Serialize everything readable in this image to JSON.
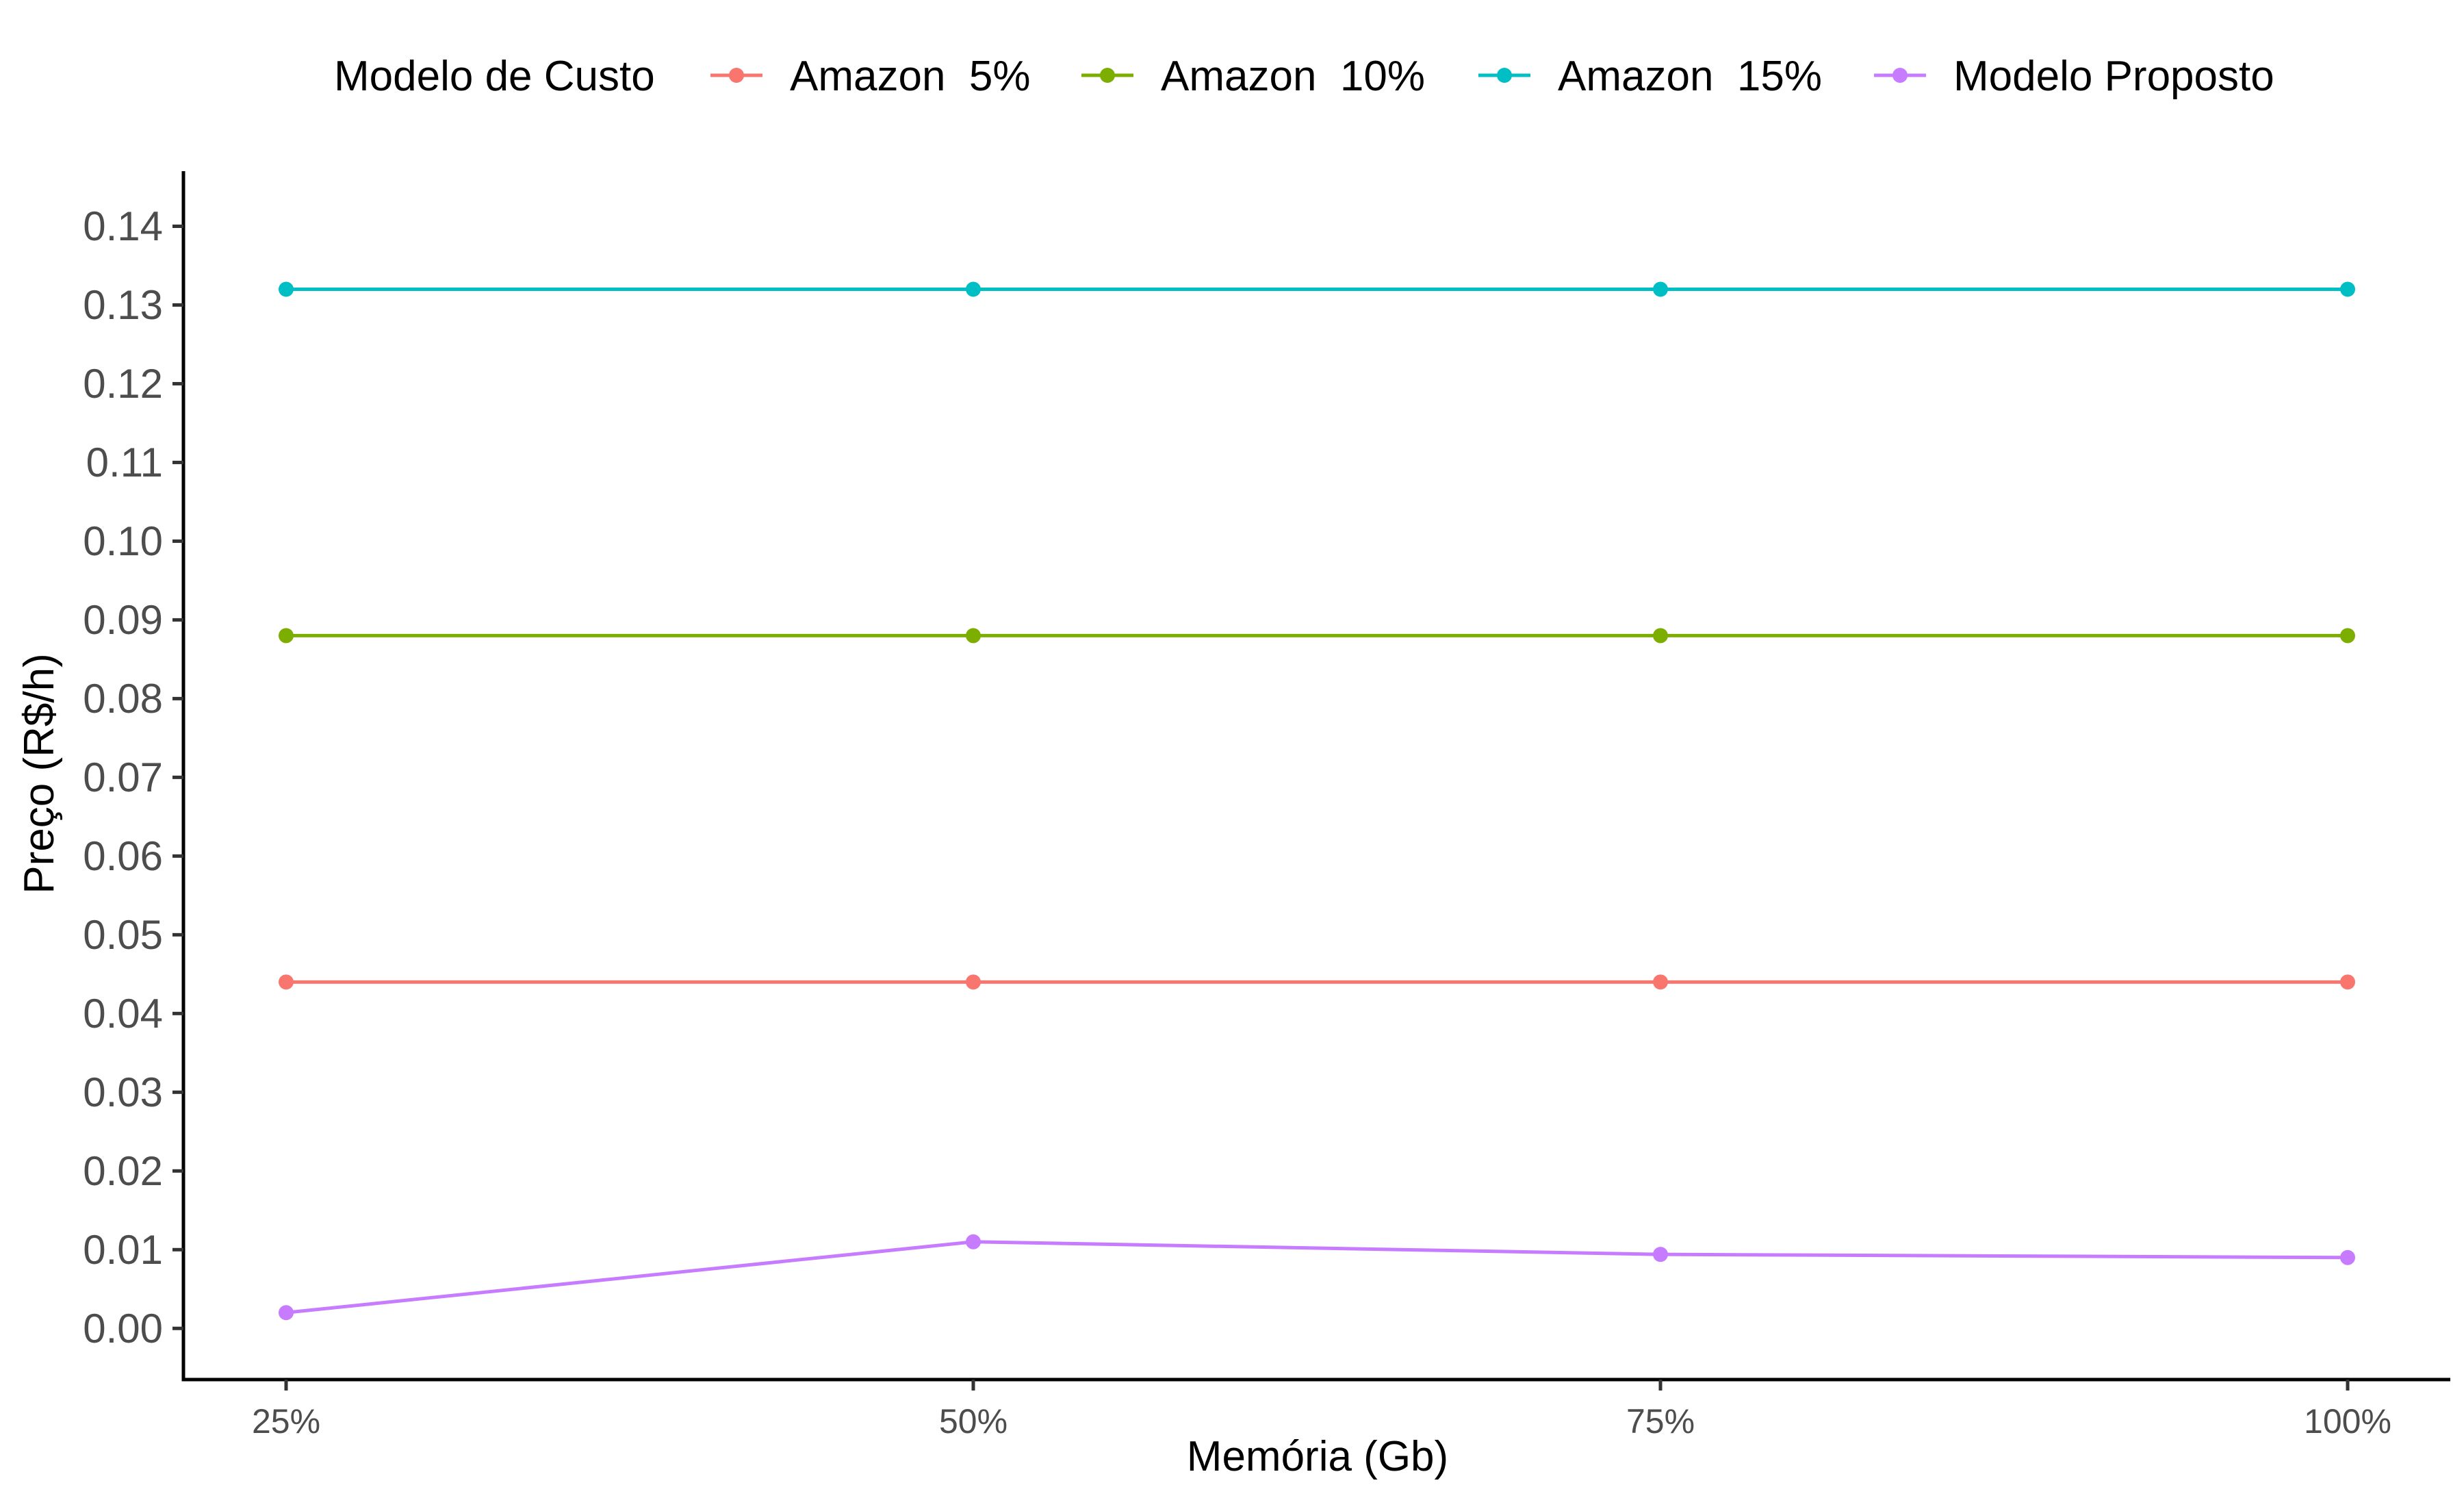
{
  "chart_data": {
    "type": "line",
    "xlabel": "Memória (Gb)",
    "ylabel": "Preço (R$/h)",
    "categories": [
      "25%",
      "50%",
      "75%",
      "100%"
    ],
    "ylim": [
      -0.0065,
      0.147
    ],
    "y_ticks": [
      "0.00",
      "0.01",
      "0.02",
      "0.03",
      "0.04",
      "0.05",
      "0.06",
      "0.07",
      "0.08",
      "0.09",
      "0.10",
      "0.11",
      "0.12",
      "0.13",
      "0.14"
    ],
    "grid": false,
    "legend": {
      "title": "Modelo de Custo",
      "position": "top"
    },
    "series": [
      {
        "name": "Amazon  5%",
        "color": "#F8766D",
        "values": [
          0.044,
          0.044,
          0.044,
          0.044
        ]
      },
      {
        "name": "Amazon  10%",
        "color": "#7CAE00",
        "values": [
          0.088,
          0.088,
          0.088,
          0.088
        ]
      },
      {
        "name": "Amazon  15%",
        "color": "#00BFC4",
        "values": [
          0.132,
          0.132,
          0.132,
          0.132
        ]
      },
      {
        "name": "Modelo Proposto",
        "color": "#C77CFF",
        "values": [
          0.002,
          0.011,
          0.0094,
          0.009
        ]
      }
    ]
  }
}
